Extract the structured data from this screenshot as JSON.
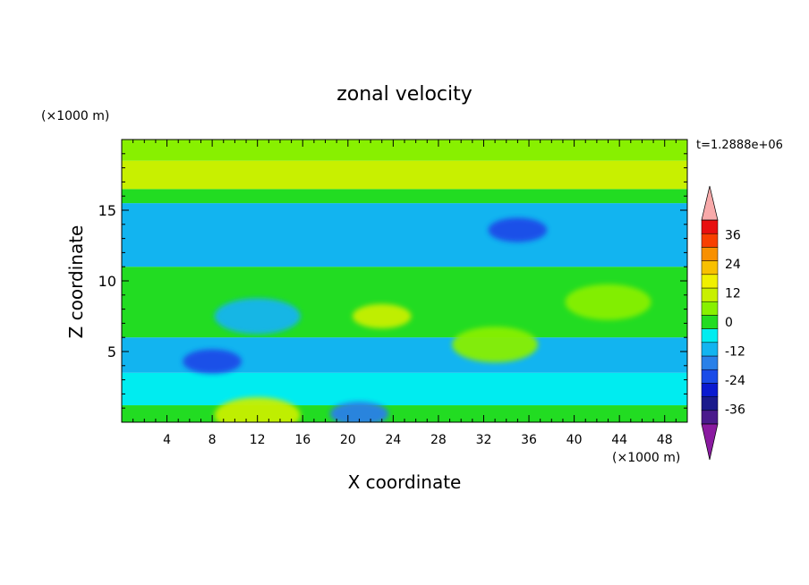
{
  "chart_data": {
    "type": "heatmap",
    "title": "zonal velocity",
    "xlabel": "X coordinate",
    "ylabel": "Z coordinate",
    "x_unit_label": "(×1000 m)",
    "y_unit_label": "(×1000 m)",
    "time_label": "t=1.2888e+06",
    "xlim": [
      0,
      50
    ],
    "ylim": [
      0,
      20
    ],
    "x_ticks": [
      4,
      8,
      12,
      16,
      20,
      24,
      28,
      32,
      36,
      40,
      44,
      48
    ],
    "y_ticks": [
      5,
      10,
      15
    ],
    "colorbar": {
      "tick_labels": [
        "36",
        "24",
        "12",
        "0",
        "-12",
        "-24",
        "-36"
      ],
      "levels": [
        -42,
        -36,
        -30,
        -24,
        -18,
        -12,
        -6,
        0,
        6,
        12,
        18,
        24,
        30,
        36,
        42
      ],
      "colors": [
        "#4a1a8c",
        "#1a1a8c",
        "#0a1ad0",
        "#1a4ce8",
        "#2a80e8",
        "#12b4f0",
        "#00ecf0",
        "#22dc22",
        "#88f000",
        "#c8f000",
        "#f0f000",
        "#f8c000",
        "#f89000",
        "#f84000",
        "#e81010"
      ],
      "over_color": "#f8aaaa",
      "under_color": "#8a1aa0",
      "extend": "both"
    },
    "field": {
      "description_x": "X coordinate (×1000 m)",
      "description_z": "Z coordinate (×1000 m)",
      "bands": [
        {
          "z_range": [
            0,
            1.2
          ],
          "value": 4
        },
        {
          "z_range": [
            1.2,
            3.5
          ],
          "value": -3
        },
        {
          "z_range": [
            3.5,
            6
          ],
          "value": -8
        },
        {
          "z_range": [
            6,
            11
          ],
          "value": 2
        },
        {
          "z_range": [
            11,
            15.5
          ],
          "value": -10
        },
        {
          "z_range": [
            15.5,
            16.5
          ],
          "value": 3
        },
        {
          "z_range": [
            16.5,
            18.5
          ],
          "value": 12
        },
        {
          "z_range": [
            18.5,
            20
          ],
          "value": 7
        }
      ],
      "features": [
        {
          "x": 35,
          "z": 13.6,
          "value": -20
        },
        {
          "x": 8,
          "z": 4.3,
          "value": -22
        },
        {
          "x": 21,
          "z": 0.6,
          "value": -18
        },
        {
          "x": 12,
          "z": 7.5,
          "value": -8
        },
        {
          "x": 23,
          "z": 7.5,
          "value": 14
        },
        {
          "x": 33,
          "z": 5.5,
          "value": 9
        },
        {
          "x": 43,
          "z": 8.5,
          "value": 8
        },
        {
          "x": 12,
          "z": 0.5,
          "value": 12
        }
      ]
    }
  }
}
